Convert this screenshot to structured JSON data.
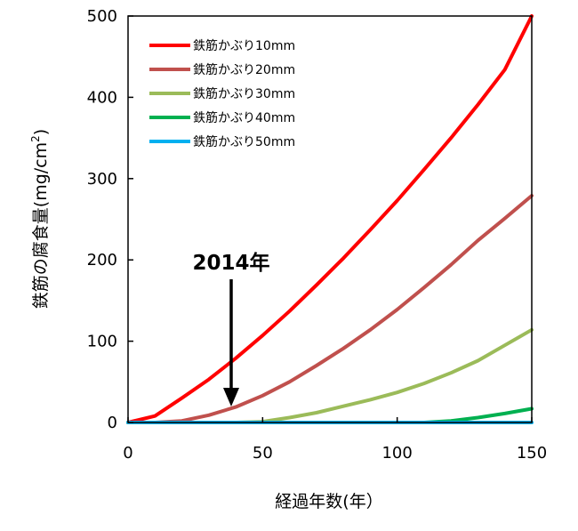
{
  "chart_data": {
    "type": "line",
    "xlabel": "経過年数(年）",
    "ylabel_main": "鉄筋の腐食量(mg/cm",
    "ylabel_sup": "2",
    "ylabel_end": ")",
    "xlim": [
      0,
      150
    ],
    "ylim": [
      0,
      500
    ],
    "xticks": [
      0,
      50,
      100,
      150
    ],
    "yticks": [
      0,
      100,
      200,
      300,
      400,
      500
    ],
    "grid": false,
    "legend_position": "top-left",
    "x": [
      0,
      10,
      20,
      30,
      40,
      50,
      60,
      70,
      80,
      90,
      100,
      110,
      120,
      130,
      140,
      150
    ],
    "series": [
      {
        "name": "鉄筋かぶり10mm",
        "color": "#ff0000",
        "values": [
          0,
          8,
          30,
          53,
          79,
          107,
          137,
          169,
          202,
          237,
          273,
          311,
          350,
          391,
          434,
          500
        ]
      },
      {
        "name": "鉄筋かぶり20mm",
        "color": "#c0504d",
        "values": [
          0,
          0,
          2,
          9,
          19,
          33,
          50,
          70,
          91,
          114,
          139,
          166,
          194,
          224,
          251,
          279
        ]
      },
      {
        "name": "鉄筋かぶり30mm",
        "color": "#9bbb59",
        "values": [
          0,
          0,
          0,
          0,
          0,
          1,
          6,
          12,
          20,
          28,
          37,
          48,
          61,
          76,
          95,
          114
        ]
      },
      {
        "name": "鉄筋かぶり40mm",
        "color": "#00b050",
        "values": [
          0,
          0,
          0,
          0,
          0,
          0,
          0,
          0,
          0,
          0,
          0,
          0,
          2,
          6,
          11,
          17
        ]
      },
      {
        "name": "鉄筋かぶり50mm",
        "color": "#00b0f0",
        "values": [
          0,
          0,
          0,
          0,
          0,
          0,
          0,
          0,
          0,
          0,
          0,
          0,
          0,
          0,
          0,
          0
        ]
      }
    ],
    "annotation": {
      "text": "2014年",
      "x": 38,
      "y": 18
    }
  }
}
